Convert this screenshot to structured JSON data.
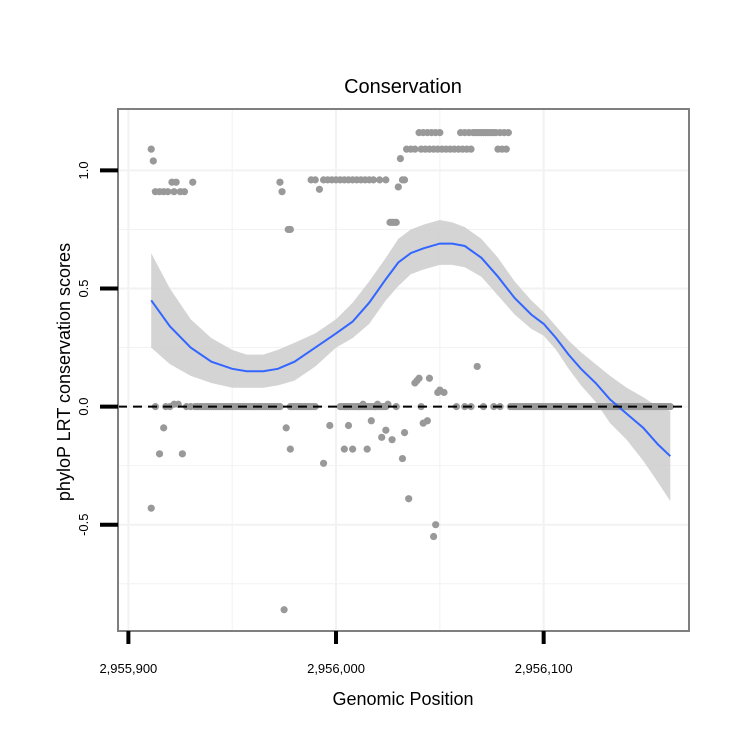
{
  "chart_data": {
    "type": "scatter",
    "title": "Conservation",
    "xlabel": "Genomic Position",
    "ylabel": "phyloP LRT conservation scores",
    "xlim": [
      2955895,
      2956170
    ],
    "ylim": [
      -0.95,
      1.26
    ],
    "x_ticks": [
      2955900,
      2956000,
      2956100
    ],
    "x_tick_labels": [
      "2,955,900",
      "2,956,000",
      "2,956,100"
    ],
    "y_ticks": [
      -0.5,
      0.0,
      0.5,
      1.0
    ],
    "y_tick_labels": [
      "-0.5",
      "0.0",
      "0.5",
      "1.0"
    ],
    "grid": true,
    "reference_line": {
      "y": 0,
      "style": "dashed",
      "color": "#000000"
    },
    "colors": {
      "points": "#999999",
      "smooth": "#3366ff",
      "ribbon": "#cccccc",
      "panel_border": "#7f7f7f",
      "grid": "#f2f2f2"
    },
    "series": [
      {
        "name": "scores",
        "kind": "points",
        "points": [
          [
            2955911,
            1.09
          ],
          [
            2955912,
            1.04
          ],
          [
            2955913,
            0.91
          ],
          [
            2955915,
            0.91
          ],
          [
            2955917,
            0.91
          ],
          [
            2955919,
            0.91
          ],
          [
            2955921,
            0.95
          ],
          [
            2955922,
            0.91
          ],
          [
            2955923,
            0.95
          ],
          [
            2955925,
            0.91
          ],
          [
            2955927,
            0.91
          ],
          [
            2955931,
            0.95
          ],
          [
            2955973,
            0.95
          ],
          [
            2955974,
            0.91
          ],
          [
            2955977,
            0.75
          ],
          [
            2955978,
            0.75
          ],
          [
            2955988,
            0.96
          ],
          [
            2955990,
            0.96
          ],
          [
            2955992,
            0.92
          ],
          [
            2955994,
            0.96
          ],
          [
            2955996,
            0.96
          ],
          [
            2955998,
            0.96
          ],
          [
            2956000,
            0.96
          ],
          [
            2956002,
            0.96
          ],
          [
            2956004,
            0.96
          ],
          [
            2956006,
            0.96
          ],
          [
            2956008,
            0.96
          ],
          [
            2956010,
            0.96
          ],
          [
            2956012,
            0.96
          ],
          [
            2956014,
            0.96
          ],
          [
            2956016,
            0.96
          ],
          [
            2956018,
            0.96
          ],
          [
            2956021,
            0.96
          ],
          [
            2956024,
            0.96
          ],
          [
            2956026,
            0.78
          ],
          [
            2956027,
            0.78
          ],
          [
            2956028,
            0.78
          ],
          [
            2956029,
            0.78
          ],
          [
            2956030,
            0.93
          ],
          [
            2956031,
            1.05
          ],
          [
            2956032,
            0.96
          ],
          [
            2956033,
            0.96
          ],
          [
            2956034,
            1.09
          ],
          [
            2956036,
            1.09
          ],
          [
            2956038,
            1.09
          ],
          [
            2956040,
            1.16
          ],
          [
            2956041,
            1.09
          ],
          [
            2956042,
            1.16
          ],
          [
            2956043,
            1.09
          ],
          [
            2956044,
            1.16
          ],
          [
            2956045,
            1.09
          ],
          [
            2956046,
            1.16
          ],
          [
            2956047,
            1.09
          ],
          [
            2956048,
            1.16
          ],
          [
            2956049,
            1.09
          ],
          [
            2956050,
            1.16
          ],
          [
            2956051,
            1.09
          ],
          [
            2956053,
            1.09
          ],
          [
            2956055,
            1.09
          ],
          [
            2956057,
            1.09
          ],
          [
            2956059,
            1.09
          ],
          [
            2956060,
            1.16
          ],
          [
            2956061,
            1.09
          ],
          [
            2956062,
            1.16
          ],
          [
            2956063,
            1.09
          ],
          [
            2956064,
            1.16
          ],
          [
            2956065,
            1.09
          ],
          [
            2956066,
            1.16
          ],
          [
            2956067,
            1.16
          ],
          [
            2956068,
            1.16
          ],
          [
            2956069,
            1.16
          ],
          [
            2956070,
            1.16
          ],
          [
            2956071,
            1.16
          ],
          [
            2956072,
            1.16
          ],
          [
            2956073,
            1.16
          ],
          [
            2956074,
            1.16
          ],
          [
            2956075,
            1.16
          ],
          [
            2956076,
            1.16
          ],
          [
            2956077,
            1.16
          ],
          [
            2956078,
            1.09
          ],
          [
            2956079,
            1.16
          ],
          [
            2956080,
            1.09
          ],
          [
            2956081,
            1.16
          ],
          [
            2956082,
            1.09
          ],
          [
            2956083,
            1.16
          ],
          [
            2955911,
            -0.43
          ],
          [
            2955913,
            0.0
          ],
          [
            2955915,
            -0.2
          ],
          [
            2955917,
            -0.09
          ],
          [
            2955918,
            0.0
          ],
          [
            2955920,
            0.0
          ],
          [
            2955922,
            0.01
          ],
          [
            2955924,
            0.01
          ],
          [
            2955926,
            -0.2
          ],
          [
            2955928,
            0.0
          ],
          [
            2955930,
            0.0
          ],
          [
            2955976,
            -0.09
          ],
          [
            2955978,
            -0.18
          ],
          [
            2955975,
            -0.86
          ],
          [
            2955973,
            0.0
          ],
          [
            2955994,
            -0.24
          ],
          [
            2955997,
            -0.08
          ],
          [
            2956004,
            -0.18
          ],
          [
            2956005,
            0.0
          ],
          [
            2956006,
            -0.08
          ],
          [
            2956008,
            -0.18
          ],
          [
            2956011,
            0.0
          ],
          [
            2956013,
            0.01
          ],
          [
            2956015,
            -0.18
          ],
          [
            2956017,
            -0.06
          ],
          [
            2956019,
            0.0
          ],
          [
            2956020,
            0.01
          ],
          [
            2956022,
            -0.13
          ],
          [
            2956024,
            -0.1
          ],
          [
            2956025,
            0.01
          ],
          [
            2956027,
            -0.14
          ],
          [
            2956029,
            0.0
          ],
          [
            2956032,
            -0.22
          ],
          [
            2956033,
            -0.11
          ],
          [
            2956035,
            -0.39
          ],
          [
            2956038,
            0.1
          ],
          [
            2956039,
            0.11
          ],
          [
            2956040,
            0.12
          ],
          [
            2956041,
            0.0
          ],
          [
            2956042,
            -0.07
          ],
          [
            2956045,
            0.12
          ],
          [
            2956044,
            -0.06
          ],
          [
            2956047,
            -0.55
          ],
          [
            2956048,
            -0.5
          ],
          [
            2956049,
            0.06
          ],
          [
            2956050,
            0.07
          ],
          [
            2956052,
            0.06
          ],
          [
            2956058,
            0.0
          ],
          [
            2956062,
            0.0
          ],
          [
            2956065,
            0.0
          ],
          [
            2956068,
            0.17
          ],
          [
            2956071,
            0.0
          ],
          [
            2956076,
            0.0
          ],
          [
            2956079,
            0.0
          ]
        ],
        "baseline_runs": [
          {
            "x_from": 2955932,
            "x_to": 2955972,
            "y": 0.0
          },
          {
            "x_from": 2955978,
            "x_to": 2955990,
            "y": 0.0
          },
          {
            "x_from": 2956002,
            "x_to": 2956024,
            "y": 0.0
          },
          {
            "x_from": 2956084,
            "x_to": 2956161,
            "y": 0.0
          }
        ]
      },
      {
        "name": "loess smooth",
        "kind": "line",
        "points": [
          [
            2955911,
            0.45
          ],
          [
            2955920,
            0.34
          ],
          [
            2955930,
            0.25
          ],
          [
            2955940,
            0.19
          ],
          [
            2955950,
            0.16
          ],
          [
            2955957,
            0.15
          ],
          [
            2955965,
            0.15
          ],
          [
            2955972,
            0.16
          ],
          [
            2955980,
            0.19
          ],
          [
            2955990,
            0.25
          ],
          [
            2956000,
            0.31
          ],
          [
            2956008,
            0.36
          ],
          [
            2956016,
            0.44
          ],
          [
            2956024,
            0.54
          ],
          [
            2956030,
            0.61
          ],
          [
            2956036,
            0.65
          ],
          [
            2956042,
            0.67
          ],
          [
            2956050,
            0.69
          ],
          [
            2956056,
            0.69
          ],
          [
            2956062,
            0.68
          ],
          [
            2956070,
            0.63
          ],
          [
            2956078,
            0.55
          ],
          [
            2956086,
            0.46
          ],
          [
            2956094,
            0.39
          ],
          [
            2956100,
            0.35
          ],
          [
            2956106,
            0.29
          ],
          [
            2956112,
            0.22
          ],
          [
            2956118,
            0.16
          ],
          [
            2956125,
            0.1
          ],
          [
            2956132,
            0.03
          ],
          [
            2956140,
            -0.03
          ],
          [
            2956148,
            -0.09
          ],
          [
            2956155,
            -0.16
          ],
          [
            2956161,
            -0.21
          ]
        ],
        "band_upper": [
          [
            2955911,
            0.65
          ],
          [
            2955920,
            0.5
          ],
          [
            2955930,
            0.37
          ],
          [
            2955940,
            0.29
          ],
          [
            2955950,
            0.24
          ],
          [
            2955957,
            0.22
          ],
          [
            2955965,
            0.22
          ],
          [
            2955972,
            0.24
          ],
          [
            2955980,
            0.27
          ],
          [
            2955990,
            0.31
          ],
          [
            2956000,
            0.37
          ],
          [
            2956008,
            0.44
          ],
          [
            2956016,
            0.53
          ],
          [
            2956024,
            0.63
          ],
          [
            2956030,
            0.71
          ],
          [
            2956036,
            0.75
          ],
          [
            2956042,
            0.77
          ],
          [
            2956050,
            0.79
          ],
          [
            2956056,
            0.78
          ],
          [
            2956062,
            0.76
          ],
          [
            2956070,
            0.71
          ],
          [
            2956078,
            0.63
          ],
          [
            2956086,
            0.53
          ],
          [
            2956094,
            0.45
          ],
          [
            2956100,
            0.4
          ],
          [
            2956106,
            0.34
          ],
          [
            2956112,
            0.28
          ],
          [
            2956118,
            0.23
          ],
          [
            2956125,
            0.18
          ],
          [
            2956132,
            0.13
          ],
          [
            2956140,
            0.08
          ],
          [
            2956148,
            0.04
          ],
          [
            2956155,
            0.0
          ],
          [
            2956161,
            -0.02
          ]
        ],
        "band_lower": [
          [
            2955911,
            0.25
          ],
          [
            2955920,
            0.18
          ],
          [
            2955930,
            0.13
          ],
          [
            2955940,
            0.1
          ],
          [
            2955950,
            0.08
          ],
          [
            2955957,
            0.08
          ],
          [
            2955965,
            0.08
          ],
          [
            2955972,
            0.09
          ],
          [
            2955980,
            0.11
          ],
          [
            2955990,
            0.17
          ],
          [
            2956000,
            0.25
          ],
          [
            2956008,
            0.29
          ],
          [
            2956016,
            0.35
          ],
          [
            2956024,
            0.45
          ],
          [
            2956030,
            0.51
          ],
          [
            2956036,
            0.56
          ],
          [
            2956042,
            0.58
          ],
          [
            2956050,
            0.6
          ],
          [
            2956056,
            0.6
          ],
          [
            2956062,
            0.59
          ],
          [
            2956070,
            0.55
          ],
          [
            2956078,
            0.47
          ],
          [
            2956086,
            0.39
          ],
          [
            2956094,
            0.33
          ],
          [
            2956100,
            0.3
          ],
          [
            2956106,
            0.24
          ],
          [
            2956112,
            0.16
          ],
          [
            2956118,
            0.09
          ],
          [
            2956125,
            0.02
          ],
          [
            2956132,
            -0.07
          ],
          [
            2956140,
            -0.14
          ],
          [
            2956148,
            -0.23
          ],
          [
            2956155,
            -0.32
          ],
          [
            2956161,
            -0.4
          ]
        ]
      }
    ]
  }
}
